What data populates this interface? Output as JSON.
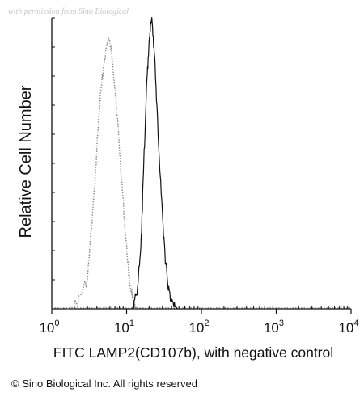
{
  "watermark": "with permission from Sino Biological",
  "copyright": "© Sino Biological Inc. All rights reserved",
  "chart_data": {
    "type": "line",
    "title": "",
    "xlabel": "FITC  LAMP2(CD107b), with negative control",
    "ylabel": "Relative Cell Number",
    "x_scale": "log",
    "xlim": [
      1,
      10000
    ],
    "ylim": [
      0,
      100
    ],
    "x_ticks": [
      {
        "value": 1,
        "base": "10",
        "exp": "0"
      },
      {
        "value": 10,
        "base": "10",
        "exp": "1"
      },
      {
        "value": 100,
        "base": "10",
        "exp": "2"
      },
      {
        "value": 1000,
        "base": "10",
        "exp": "3"
      },
      {
        "value": 10000,
        "base": "10",
        "exp": "4"
      }
    ],
    "grid": false,
    "legend": "none",
    "series": [
      {
        "style": "dotted",
        "color": "#8a8a8a",
        "points": [
          {
            "x": 1.6,
            "y": 0
          },
          {
            "x": 2.2,
            "y": 2
          },
          {
            "x": 3.0,
            "y": 10
          },
          {
            "x": 3.7,
            "y": 40
          },
          {
            "x": 4.3,
            "y": 68
          },
          {
            "x": 5.0,
            "y": 85
          },
          {
            "x": 5.7,
            "y": 93
          },
          {
            "x": 6.5,
            "y": 86
          },
          {
            "x": 7.5,
            "y": 66
          },
          {
            "x": 8.5,
            "y": 46
          },
          {
            "x": 9.7,
            "y": 25
          },
          {
            "x": 11.0,
            "y": 9
          },
          {
            "x": 12.5,
            "y": 2
          },
          {
            "x": 14.0,
            "y": 0
          }
        ]
      },
      {
        "style": "solid",
        "color": "#111111",
        "points": [
          {
            "x": 12.0,
            "y": 0
          },
          {
            "x": 13.8,
            "y": 6
          },
          {
            "x": 15.5,
            "y": 20
          },
          {
            "x": 17.0,
            "y": 50
          },
          {
            "x": 18.5,
            "y": 76
          },
          {
            "x": 20.0,
            "y": 92
          },
          {
            "x": 21.5,
            "y": 100
          },
          {
            "x": 23.5,
            "y": 88
          },
          {
            "x": 26.0,
            "y": 64
          },
          {
            "x": 29.0,
            "y": 40
          },
          {
            "x": 32.0,
            "y": 21
          },
          {
            "x": 36.0,
            "y": 7
          },
          {
            "x": 41.0,
            "y": 2
          },
          {
            "x": 48.0,
            "y": 0
          }
        ]
      }
    ]
  }
}
